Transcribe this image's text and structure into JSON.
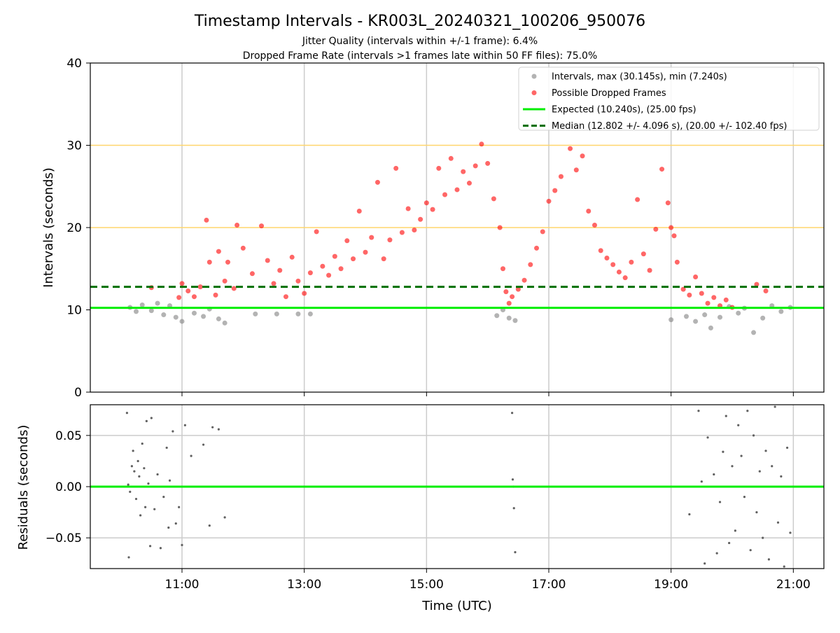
{
  "chart_data": [
    {
      "type": "scatter",
      "title": "Timestamp Intervals - KR003L_20240321_100206_950076",
      "subtitle_lines": [
        "Jitter Quality (intervals within +/-1 frame): 6.4%",
        "Dropped Frame Rate (intervals >1 frames late within 50 FF files): 75.0%"
      ],
      "ylabel": "Intervals (seconds)",
      "x_unit": "hours UTC (10.0 = 10:00)",
      "xlim": [
        9.5,
        21.5
      ],
      "ylim": [
        0,
        40
      ],
      "yticks": [
        0,
        10,
        20,
        30,
        40
      ],
      "xticks": [
        11,
        13,
        15,
        17,
        19,
        21
      ],
      "grid": true,
      "legend_position": "top-right",
      "legend": [
        {
          "label": "Intervals, max (30.145s), min (7.240s)",
          "kind": "marker",
          "color": "#808080"
        },
        {
          "label": "Possible Dropped Frames",
          "kind": "marker",
          "color": "#ff0000"
        },
        {
          "label": "Expected (10.240s), (25.00 fps)",
          "kind": "line",
          "color": "#00ee00"
        },
        {
          "label": "Median (12.802 +/- 4.096 s), (20.00 +/- 102.40 fps)",
          "kind": "dashed",
          "color": "#007000"
        }
      ],
      "expected_line": 10.24,
      "median_line": 12.802,
      "threshold_lines": [
        20,
        30
      ],
      "intervals_max": 30.145,
      "intervals_min": 7.24,
      "series": [
        {
          "name": "Intervals, max (30.145s), min (7.240s)",
          "color": "#808080",
          "points": [
            [
              10.15,
              10.3
            ],
            [
              10.25,
              9.8
            ],
            [
              10.35,
              10.6
            ],
            [
              10.5,
              9.9
            ],
            [
              10.6,
              10.8
            ],
            [
              10.7,
              9.4
            ],
            [
              10.8,
              10.5
            ],
            [
              10.9,
              9.1
            ],
            [
              11.0,
              8.6
            ],
            [
              11.2,
              9.6
            ],
            [
              11.35,
              9.2
            ],
            [
              11.45,
              10.1
            ],
            [
              11.6,
              8.9
            ],
            [
              11.7,
              8.4
            ],
            [
              12.2,
              9.5
            ],
            [
              12.55,
              9.5
            ],
            [
              12.9,
              9.5
            ],
            [
              13.1,
              9.5
            ],
            [
              16.15,
              9.3
            ],
            [
              16.25,
              10.0
            ],
            [
              16.35,
              9.0
            ],
            [
              16.45,
              8.7
            ],
            [
              19.0,
              8.8
            ],
            [
              19.25,
              9.2
            ],
            [
              19.4,
              8.6
            ],
            [
              19.55,
              9.4
            ],
            [
              19.65,
              7.8
            ],
            [
              19.8,
              9.1
            ],
            [
              19.95,
              10.4
            ],
            [
              20.1,
              9.6
            ],
            [
              20.2,
              10.2
            ],
            [
              20.35,
              7.24
            ],
            [
              20.5,
              9.0
            ],
            [
              20.65,
              10.5
            ],
            [
              20.8,
              9.8
            ],
            [
              20.95,
              10.3
            ]
          ]
        },
        {
          "name": "Possible Dropped Frames",
          "color": "#ff0000",
          "points": [
            [
              10.5,
              12.7
            ],
            [
              10.95,
              11.5
            ],
            [
              11.0,
              13.2
            ],
            [
              11.1,
              12.3
            ],
            [
              11.2,
              11.6
            ],
            [
              11.3,
              12.8
            ],
            [
              11.4,
              20.9
            ],
            [
              11.45,
              15.8
            ],
            [
              11.55,
              11.8
            ],
            [
              11.6,
              17.1
            ],
            [
              11.7,
              13.5
            ],
            [
              11.75,
              15.8
            ],
            [
              11.85,
              12.6
            ],
            [
              11.9,
              20.3
            ],
            [
              12.0,
              17.5
            ],
            [
              12.15,
              14.4
            ],
            [
              12.3,
              20.2
            ],
            [
              12.4,
              16.0
            ],
            [
              12.5,
              13.2
            ],
            [
              12.6,
              14.8
            ],
            [
              12.7,
              11.6
            ],
            [
              12.8,
              16.4
            ],
            [
              12.9,
              13.5
            ],
            [
              13.0,
              12.0
            ],
            [
              13.1,
              14.5
            ],
            [
              13.2,
              19.5
            ],
            [
              13.3,
              15.3
            ],
            [
              13.4,
              14.2
            ],
            [
              13.5,
              16.5
            ],
            [
              13.6,
              15.0
            ],
            [
              13.7,
              18.4
            ],
            [
              13.8,
              16.2
            ],
            [
              13.9,
              22.0
            ],
            [
              14.0,
              17.0
            ],
            [
              14.1,
              18.8
            ],
            [
              14.2,
              25.5
            ],
            [
              14.3,
              16.2
            ],
            [
              14.4,
              18.5
            ],
            [
              14.5,
              27.2
            ],
            [
              14.6,
              19.4
            ],
            [
              14.7,
              22.3
            ],
            [
              14.8,
              19.7
            ],
            [
              14.9,
              21.0
            ],
            [
              15.0,
              23.0
            ],
            [
              15.1,
              22.2
            ],
            [
              15.2,
              27.2
            ],
            [
              15.3,
              24.0
            ],
            [
              15.4,
              28.4
            ],
            [
              15.5,
              24.6
            ],
            [
              15.6,
              26.8
            ],
            [
              15.7,
              25.4
            ],
            [
              15.8,
              27.5
            ],
            [
              15.9,
              30.145
            ],
            [
              16.0,
              27.8
            ],
            [
              16.1,
              23.5
            ],
            [
              16.2,
              20.0
            ],
            [
              16.25,
              15.0
            ],
            [
              16.3,
              12.2
            ],
            [
              16.35,
              10.8
            ],
            [
              16.4,
              11.6
            ],
            [
              16.5,
              12.5
            ],
            [
              16.6,
              13.6
            ],
            [
              16.7,
              15.5
            ],
            [
              16.8,
              17.5
            ],
            [
              16.9,
              19.5
            ],
            [
              17.0,
              23.2
            ],
            [
              17.1,
              24.5
            ],
            [
              17.2,
              26.2
            ],
            [
              17.35,
              29.6
            ],
            [
              17.45,
              27.0
            ],
            [
              17.55,
              28.7
            ],
            [
              17.65,
              22.0
            ],
            [
              17.75,
              20.3
            ],
            [
              17.85,
              17.2
            ],
            [
              17.95,
              16.3
            ],
            [
              18.05,
              15.5
            ],
            [
              18.15,
              14.6
            ],
            [
              18.25,
              13.9
            ],
            [
              18.35,
              15.8
            ],
            [
              18.45,
              23.4
            ],
            [
              18.55,
              16.8
            ],
            [
              18.65,
              14.8
            ],
            [
              18.75,
              19.8
            ],
            [
              18.85,
              27.1
            ],
            [
              18.95,
              23.0
            ],
            [
              19.0,
              20.0
            ],
            [
              19.05,
              19.0
            ],
            [
              19.1,
              15.8
            ],
            [
              19.2,
              12.5
            ],
            [
              19.3,
              11.8
            ],
            [
              19.4,
              14.0
            ],
            [
              19.5,
              12.0
            ],
            [
              19.6,
              10.8
            ],
            [
              19.7,
              11.5
            ],
            [
              19.8,
              10.5
            ],
            [
              19.9,
              11.2
            ],
            [
              20.0,
              10.3
            ],
            [
              20.4,
              13.1
            ],
            [
              20.55,
              12.3
            ]
          ]
        }
      ]
    },
    {
      "type": "scatter",
      "xlabel": "Time (UTC)",
      "ylabel": "Residuals (seconds)",
      "xlim": [
        9.5,
        21.5
      ],
      "ylim": [
        -0.08,
        0.08
      ],
      "yticks": [
        -0.05,
        0.0,
        0.05
      ],
      "ytick_labels": [
        "−0.05",
        "0.00",
        "0.05"
      ],
      "xticks": [
        11,
        13,
        15,
        17,
        19,
        21
      ],
      "xtick_labels": [
        "11:00",
        "13:00",
        "15:00",
        "17:00",
        "19:00",
        "21:00"
      ],
      "grid": true,
      "zero_line_color": "#00ee00",
      "series": [
        {
          "name": "residuals",
          "color": "#606060",
          "points": [
            [
              10.1,
              0.072
            ],
            [
              10.12,
              0.002
            ],
            [
              10.15,
              -0.005
            ],
            [
              10.18,
              0.02
            ],
            [
              10.2,
              0.035
            ],
            [
              10.22,
              0.015
            ],
            [
              10.25,
              -0.012
            ],
            [
              10.28,
              0.025
            ],
            [
              10.3,
              0.01
            ],
            [
              10.32,
              -0.028
            ],
            [
              10.35,
              0.042
            ],
            [
              10.38,
              0.018
            ],
            [
              10.4,
              -0.02
            ],
            [
              10.42,
              0.064
            ],
            [
              10.45,
              0.003
            ],
            [
              10.48,
              -0.058
            ],
            [
              10.5,
              0.067
            ],
            [
              10.55,
              -0.022
            ],
            [
              10.6,
              0.012
            ],
            [
              10.65,
              -0.06
            ],
            [
              10.7,
              -0.01
            ],
            [
              10.75,
              0.038
            ],
            [
              10.78,
              -0.04
            ],
            [
              10.8,
              0.006
            ],
            [
              10.85,
              0.054
            ],
            [
              10.9,
              -0.036
            ],
            [
              10.95,
              -0.02
            ],
            [
              11.0,
              -0.057
            ],
            [
              11.05,
              0.06
            ],
            [
              11.15,
              0.03
            ],
            [
              11.35,
              0.041
            ],
            [
              11.45,
              -0.038
            ],
            [
              11.5,
              0.058
            ],
            [
              11.6,
              0.056
            ],
            [
              11.7,
              -0.03
            ],
            [
              10.13,
              -0.069
            ],
            [
              16.4,
              0.072
            ],
            [
              16.41,
              0.007
            ],
            [
              16.42,
              0.0
            ],
            [
              16.43,
              -0.021
            ],
            [
              16.45,
              -0.064
            ],
            [
              19.3,
              -0.027
            ],
            [
              19.45,
              0.074
            ],
            [
              19.5,
              0.005
            ],
            [
              19.55,
              -0.075
            ],
            [
              19.6,
              0.048
            ],
            [
              19.7,
              0.012
            ],
            [
              19.75,
              -0.065
            ],
            [
              19.8,
              -0.015
            ],
            [
              19.85,
              0.034
            ],
            [
              19.9,
              0.069
            ],
            [
              19.95,
              -0.055
            ],
            [
              20.0,
              0.02
            ],
            [
              20.05,
              -0.043
            ],
            [
              20.1,
              0.06
            ],
            [
              20.15,
              0.03
            ],
            [
              20.2,
              -0.01
            ],
            [
              20.25,
              0.074
            ],
            [
              20.3,
              -0.062
            ],
            [
              20.35,
              0.05
            ],
            [
              20.4,
              -0.025
            ],
            [
              20.45,
              0.015
            ],
            [
              20.5,
              -0.05
            ],
            [
              20.55,
              0.035
            ],
            [
              20.6,
              -0.071
            ],
            [
              20.65,
              0.02
            ],
            [
              20.7,
              0.078
            ],
            [
              20.75,
              -0.035
            ],
            [
              20.8,
              0.01
            ],
            [
              20.85,
              -0.078
            ],
            [
              20.9,
              0.038
            ],
            [
              20.95,
              -0.045
            ]
          ]
        }
      ]
    }
  ]
}
